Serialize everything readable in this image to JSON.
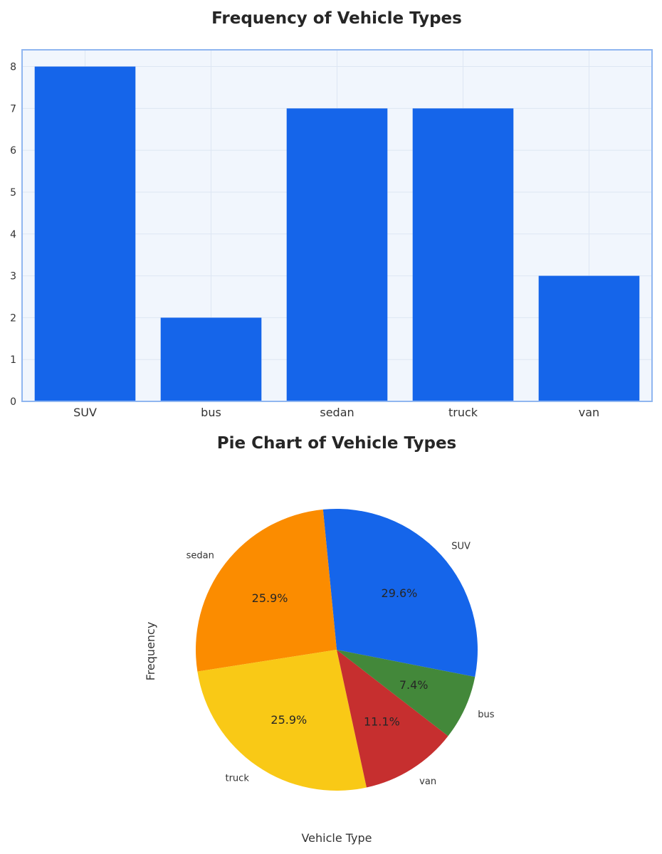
{
  "chart_data": [
    {
      "type": "bar",
      "title": "Frequency of Vehicle Types",
      "categories": [
        "SUV",
        "bus",
        "sedan",
        "truck",
        "van"
      ],
      "values": [
        8,
        2,
        7,
        7,
        3
      ],
      "ylim": [
        0,
        8.4
      ],
      "yticks": [
        "0",
        "1",
        "2",
        "3",
        "4",
        "5",
        "6",
        "7",
        "8"
      ],
      "grid": true,
      "bar_color": "#1565ea",
      "plot_background": "#f1f6fd",
      "frame_color": "#90b6f0"
    },
    {
      "type": "pie",
      "title": "Pie Chart of Vehicle Types",
      "categories": [
        "SUV",
        "sedan",
        "truck",
        "van",
        "bus"
      ],
      "values": [
        8,
        7,
        7,
        3,
        2
      ],
      "percent_labels": [
        "29.6%",
        "25.9%",
        "25.9%",
        "11.1%",
        "7.4%"
      ],
      "colors": [
        "#1565ea",
        "#fb8c00",
        "#f9c916",
        "#c62f2f",
        "#43883a"
      ],
      "xlabel": "Vehicle Type",
      "ylabel": "Frequency"
    }
  ]
}
